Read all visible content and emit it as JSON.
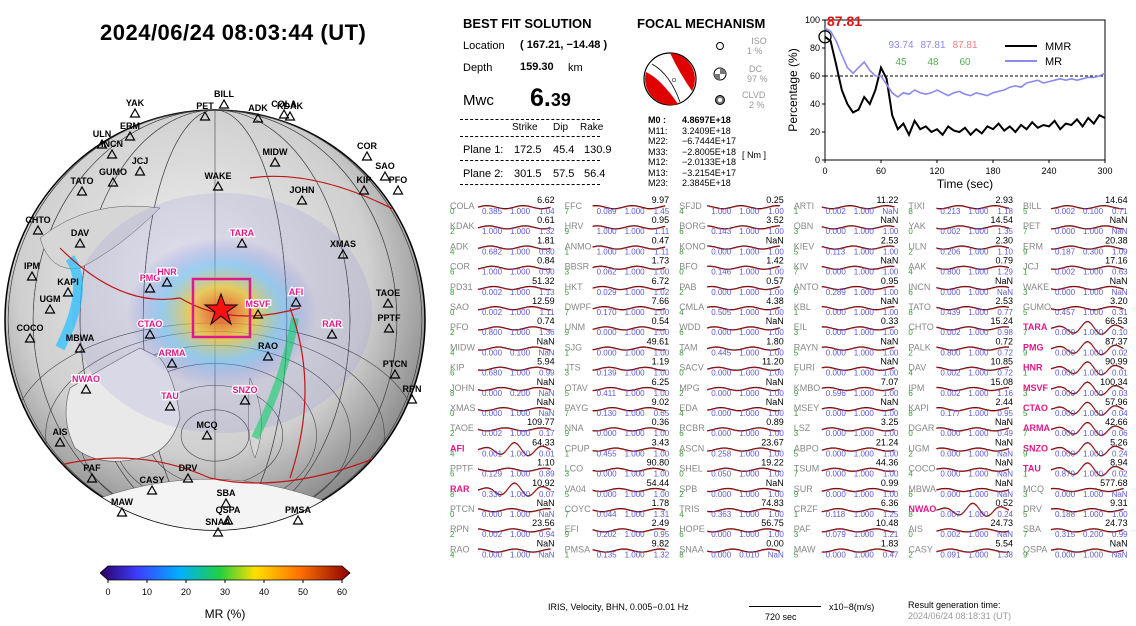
{
  "header": {
    "datetime": "2024/06/24  08:03:44 (UT)"
  },
  "solution": {
    "title": "BEST FIT SOLUTION",
    "location_label": "Location",
    "location_value": "( 167.21, −14.48 )",
    "depth_label": "Depth",
    "depth_value": "159.30",
    "depth_unit": "km",
    "mw_label": "Mwc",
    "mw_int": "6.",
    "mw_dec": "39",
    "col_strike": "Strike",
    "col_dip": "Dip",
    "col_rake": "Rake",
    "plane1_label": "Plane 1:",
    "plane1": [
      "172.5",
      "45.4",
      "130.9"
    ],
    "plane2_label": "Plane 2:",
    "plane2": [
      "301.5",
      "57.5",
      "56.4"
    ]
  },
  "focal": {
    "title": "FOCAL MECHANISM",
    "iso_label": "ISO",
    "iso_val": "1 %",
    "dc_label": "DC",
    "dc_val": "97 %",
    "clvd_label": "CLVD",
    "clvd_val": "2 %",
    "tensor": [
      [
        "M0 :",
        "4.8697E+18"
      ],
      [
        "M11:",
        "3.2409E+18"
      ],
      [
        "M22:",
        "−6.7444E+17"
      ],
      [
        "M33:",
        "−2.8005E+18"
      ],
      [
        "M12:",
        "−2.0133E+18"
      ],
      [
        "M13:",
        "−3.2154E+17"
      ],
      [
        "M23:",
        "2.3845E+18"
      ]
    ],
    "unit": "[ Nm ]",
    "colors": {
      "compression": "#e00000",
      "dilatation": "#ffffff"
    }
  },
  "inset": {
    "peak_label": "87.81",
    "nums_top": [
      "93.74",
      "87.81",
      "87.81"
    ],
    "nums_bottom": [
      "45",
      "48",
      "60"
    ],
    "legend": [
      "MMR",
      "MR"
    ],
    "ylabel": "Percentage (%)",
    "xlabel": "Time (sec)",
    "xticks": [
      "0",
      "60",
      "120",
      "180",
      "240",
      "300"
    ],
    "yticks": [
      "0",
      "20",
      "40",
      "60",
      "80",
      "100"
    ]
  },
  "chart_data": {
    "type": "line",
    "xlabel": "Time (sec)",
    "ylabel": "Percentage (%)",
    "xlim": [
      0,
      300
    ],
    "ylim": [
      0,
      100
    ],
    "reference_line": 60,
    "series": [
      {
        "name": "MMR",
        "color": "#000000",
        "x": [
          0,
          6,
          12,
          18,
          24,
          30,
          36,
          42,
          48,
          54,
          60,
          66,
          72,
          78,
          84,
          90,
          96,
          102,
          108,
          114,
          120,
          126,
          132,
          138,
          144,
          150,
          156,
          162,
          168,
          174,
          180,
          186,
          192,
          198,
          204,
          210,
          216,
          222,
          228,
          234,
          240,
          246,
          252,
          258,
          264,
          270,
          276,
          282,
          288,
          294,
          300
        ],
        "y": [
          88,
          85,
          68,
          50,
          40,
          34,
          36,
          45,
          40,
          50,
          66,
          58,
          32,
          22,
          26,
          18,
          28,
          22,
          24,
          20,
          22,
          18,
          24,
          21,
          20,
          23,
          18,
          22,
          19,
          24,
          22,
          26,
          21,
          24,
          20,
          25,
          22,
          27,
          23,
          25,
          24,
          28,
          22,
          26,
          25,
          29,
          24,
          30,
          26,
          32,
          30
        ]
      },
      {
        "name": "MR",
        "color": "#8a8aee",
        "x": [
          0,
          6,
          12,
          18,
          24,
          30,
          36,
          42,
          48,
          54,
          60,
          66,
          72,
          78,
          84,
          90,
          96,
          102,
          108,
          114,
          120,
          126,
          132,
          138,
          144,
          150,
          156,
          162,
          168,
          174,
          180,
          186,
          192,
          198,
          204,
          210,
          216,
          222,
          228,
          234,
          240,
          246,
          252,
          258,
          264,
          270,
          276,
          282,
          288,
          294,
          300
        ],
        "y": [
          94,
          92,
          85,
          75,
          66,
          62,
          66,
          70,
          64,
          60,
          60,
          54,
          48,
          45,
          48,
          47,
          50,
          48,
          47,
          48,
          50,
          48,
          46,
          48,
          49,
          47,
          46,
          48,
          47,
          46,
          48,
          49,
          50,
          52,
          53,
          52,
          55,
          56,
          57,
          55,
          56,
          57,
          58,
          57,
          58,
          57,
          58,
          59,
          59,
          60,
          62
        ]
      }
    ]
  },
  "colorbar": {
    "label": "MR (%)",
    "ticks": [
      "0",
      "10",
      "20",
      "30",
      "40",
      "50",
      "60"
    ]
  },
  "globe": {
    "stations": [
      {
        "name": "BILL",
        "red": false
      },
      {
        "name": "PET",
        "red": false
      },
      {
        "name": "ADK",
        "red": false
      },
      {
        "name": "COLA",
        "red": false
      },
      {
        "name": "KDAK",
        "red": false
      },
      {
        "name": "YAK",
        "red": false
      },
      {
        "name": "ERM",
        "red": false
      },
      {
        "name": "ULN",
        "red": false
      },
      {
        "name": "INCN",
        "red": false
      },
      {
        "name": "JCJ",
        "red": false
      },
      {
        "name": "MIDW",
        "red": false
      },
      {
        "name": "COR",
        "red": false
      },
      {
        "name": "SAO",
        "red": false
      },
      {
        "name": "PFO",
        "red": false
      },
      {
        "name": "TATO",
        "red": false
      },
      {
        "name": "GUMO",
        "red": false
      },
      {
        "name": "WAKE",
        "red": false
      },
      {
        "name": "JOHN",
        "red": false
      },
      {
        "name": "KIP",
        "red": false
      },
      {
        "name": "CHTO",
        "red": false
      },
      {
        "name": "DAV",
        "red": false
      },
      {
        "name": "TARA",
        "red": true
      },
      {
        "name": "XMAS",
        "red": false
      },
      {
        "name": "IPM",
        "red": false
      },
      {
        "name": "PMG",
        "red": true
      },
      {
        "name": "HNR",
        "red": true
      },
      {
        "name": "KAPI",
        "red": false
      },
      {
        "name": "AFI",
        "red": true
      },
      {
        "name": "TAOE",
        "red": false
      },
      {
        "name": "UGM",
        "red": false
      },
      {
        "name": "MSVF",
        "red": true
      },
      {
        "name": "PPTF",
        "red": false
      },
      {
        "name": "RAR",
        "red": true
      },
      {
        "name": "CTAO",
        "red": true
      },
      {
        "name": "COCO",
        "red": false
      },
      {
        "name": "MBWA",
        "red": false
      },
      {
        "name": "RAO",
        "red": false
      },
      {
        "name": "ARMA",
        "red": true
      },
      {
        "name": "PTCN",
        "red": false
      },
      {
        "name": "NWAO",
        "red": true
      },
      {
        "name": "RPN",
        "red": false
      },
      {
        "name": "TAU",
        "red": true
      },
      {
        "name": "SNZO",
        "red": true
      },
      {
        "name": "MCQ",
        "red": false
      },
      {
        "name": "AIS",
        "red": false
      },
      {
        "name": "PAF",
        "red": false
      },
      {
        "name": "DRV",
        "red": false
      },
      {
        "name": "CASY",
        "red": false
      },
      {
        "name": "SBA",
        "red": false
      },
      {
        "name": "MAW",
        "red": false
      },
      {
        "name": "QSPA",
        "red": false
      },
      {
        "name": "PMSA",
        "red": false
      },
      {
        "name": "SNAA",
        "red": false
      }
    ]
  },
  "traces": [
    [
      "COLA",
      "6.62",
      "0.385",
      "1.000",
      "1.04",
      false
    ],
    [
      "FFC",
      "9.97",
      "0.089",
      "1.000",
      "1.45",
      false
    ],
    [
      "SFJD",
      "0.25",
      "1.000",
      "1.000",
      "1.00",
      false
    ],
    [
      "ARTI",
      "11.22",
      "0.002",
      "1.000",
      "NaN",
      false
    ],
    [
      "TIXI",
      "2.93",
      "0.213",
      "1.000",
      "1.18",
      false
    ],
    [
      "BILL",
      "14.64",
      "0.002",
      "0.100",
      "0.71",
      false
    ],
    [
      "KDAK",
      "0.61",
      "1.000",
      "1.000",
      "1.32",
      false
    ],
    [
      "HRV",
      "0.95",
      "1.000",
      "1.000",
      "1.11",
      false
    ],
    [
      "BORG",
      "3.52",
      "0.143",
      "1.000",
      "1.00",
      false
    ],
    [
      "OBN",
      "NaN",
      "0.000",
      "1.000",
      "1.00",
      false
    ],
    [
      "YAK",
      "14.54",
      "0.002",
      "1.000",
      "1.35",
      false
    ],
    [
      "PET",
      "NaN",
      "0.000",
      "1.000",
      "NaN",
      false
    ],
    [
      "ADK",
      "1.81",
      "0.682",
      "1.000",
      "0.80",
      false
    ],
    [
      "ANMO",
      "0.47",
      "1.000",
      "1.000",
      "1.11",
      false
    ],
    [
      "KONO",
      "NaN",
      "0.000",
      "1.000",
      "1.00",
      false
    ],
    [
      "KIEV",
      "2.53",
      "0.113",
      "1.000",
      "1.00",
      false
    ],
    [
      "ULN",
      "2.30",
      "0.206",
      "1.000",
      "1.10",
      false
    ],
    [
      "ERM",
      "20.38",
      "0.187",
      "0.300",
      "1.09",
      false
    ],
    [
      "COR",
      "0.84",
      "1.000",
      "1.000",
      "0.90",
      false
    ],
    [
      "BBSR",
      "1.73",
      "0.062",
      "1.000",
      "1.00",
      false
    ],
    [
      "BFO",
      "1.42",
      "0.146",
      "1.000",
      "1.00",
      false
    ],
    [
      "KIV",
      "NaN",
      "0.000",
      "1.000",
      "1.00",
      false
    ],
    [
      "AAK",
      "0.79",
      "0.800",
      "1.000",
      "1.29",
      false
    ],
    [
      "JCJ",
      "17.16",
      "0.002",
      "1.000",
      "0.63",
      false
    ],
    [
      "PD31",
      "51.32",
      "0.002",
      "1.000",
      "1.13",
      false
    ],
    [
      "HKT",
      "6.72",
      "0.029",
      "1.000",
      "1.02",
      false
    ],
    [
      "PAB",
      "0.57",
      "0.000",
      "1.000",
      "1.00",
      false
    ],
    [
      "ANTO",
      "0.95",
      "0.289",
      "1.000",
      "1.00",
      false
    ],
    [
      "INCN",
      "NaN",
      "0.000",
      "1.000",
      "NaN",
      false
    ],
    [
      "WAKE",
      "NaN",
      "0.000",
      "1.000",
      "NaN",
      false
    ],
    [
      "SAO",
      "12.59",
      "0.002",
      "1.000",
      "1.11",
      false
    ],
    [
      "DWPF",
      "7.66",
      "0.170",
      "1.000",
      "1.00",
      false
    ],
    [
      "CMLA",
      "4.38",
      "0.505",
      "1.000",
      "1.00",
      false
    ],
    [
      "KBL",
      "NaN",
      "0.000",
      "1.000",
      "1.00",
      false
    ],
    [
      "TATO",
      "2.53",
      "0.439",
      "1.000",
      "0.77",
      false
    ],
    [
      "GUMO",
      "3.20",
      "0.457",
      "1.000",
      "0.31",
      false
    ],
    [
      "PFO",
      "0.74",
      "0.800",
      "1.000",
      "1.36",
      false
    ],
    [
      "UNM",
      "0.54",
      "0.000",
      "1.000",
      "1.00",
      false
    ],
    [
      "WDD",
      "NaN",
      "0.000",
      "1.000",
      "1.00",
      false
    ],
    [
      "EIL",
      "0.33",
      "0.000",
      "1.000",
      "1.00",
      false
    ],
    [
      "CHTO",
      "15.24",
      "0.002",
      "1.000",
      "0.98",
      false
    ],
    [
      "TARA",
      "66.53",
      "0.000",
      "1.000",
      "0.10",
      true
    ],
    [
      "MIDW",
      "NaN",
      "0.000",
      "0.100",
      "NaN",
      false
    ],
    [
      "SJG",
      "49.61",
      "0.000",
      "1.000",
      "1.00",
      false
    ],
    [
      "TAM",
      "1.80",
      "0.445",
      "1.000",
      "1.00",
      false
    ],
    [
      "RAYN",
      "NaN",
      "0.000",
      "1.000",
      "1.00",
      false
    ],
    [
      "PALK",
      "0.72",
      "0.800",
      "1.000",
      "0.72",
      false
    ],
    [
      "PMG",
      "87.37",
      "0.000",
      "1.000",
      "0.02",
      true
    ],
    [
      "KIP",
      "5.94",
      "0.680",
      "1.000",
      "0.99",
      false
    ],
    [
      "JTS",
      "1.19",
      "0.139",
      "1.000",
      "1.00",
      false
    ],
    [
      "SACV",
      "11.20",
      "0.000",
      "1.000",
      "1.00",
      false
    ],
    [
      "FURI",
      "NaN",
      "0.000",
      "1.000",
      "1.00",
      false
    ],
    [
      "DAV",
      "10.85",
      "0.002",
      "1.000",
      "0.72",
      false
    ],
    [
      "HNR",
      "90.99",
      "0.000",
      "1.000",
      "0.01",
      true
    ],
    [
      "JOHN",
      "NaN",
      "0.000",
      "0.200",
      "NaN",
      false
    ],
    [
      "OTAV",
      "6.25",
      "0.411",
      "1.000",
      "1.00",
      false
    ],
    [
      "MPG",
      "NaN",
      "0.000",
      "1.000",
      "1.00",
      false
    ],
    [
      "KMBO",
      "7.07",
      "0.596",
      "1.000",
      "1.00",
      false
    ],
    [
      "IPM",
      "15.08",
      "0.002",
      "1.000",
      "1.16",
      false
    ],
    [
      "MSVF",
      "100.34",
      "0.000",
      "1.000",
      "0.03",
      true
    ],
    [
      "XMAS",
      "NaN",
      "0.000",
      "1.000",
      "NaN",
      false
    ],
    [
      "PAYG",
      "9.02",
      "0.130",
      "1.000",
      "0.65",
      false
    ],
    [
      "EDA",
      "NaN",
      "0.000",
      "1.000",
      "1.00",
      false
    ],
    [
      "MSEY",
      "NaN",
      "0.000",
      "1.000",
      "1.00",
      false
    ],
    [
      "KAPI",
      "2.44",
      "0.177",
      "1.000",
      "0.95",
      false
    ],
    [
      "CTAO",
      "57.96",
      "0.000",
      "1.000",
      "0.04",
      true
    ],
    [
      "TAOE",
      "109.77",
      "0.002",
      "1.000",
      "0.17",
      false
    ],
    [
      "NNA",
      "0.36",
      "0.000",
      "1.000",
      "1.00",
      false
    ],
    [
      "RCBR",
      "0.89",
      "0.000",
      "1.000",
      "1.00",
      false
    ],
    [
      "LSZ",
      "3.25",
      "0.000",
      "1.000",
      "1.00",
      false
    ],
    [
      "DGAR",
      "NaN",
      "0.000",
      "1.000",
      "0.49",
      false
    ],
    [
      "ARMA",
      "42.66",
      "0.000",
      "1.000",
      "0.06",
      true
    ],
    [
      "AFI",
      "64.33",
      "0.001",
      "1.000",
      "0.01",
      true
    ],
    [
      "CPUP",
      "3.43",
      "0.455",
      "1.000",
      "1.00",
      false
    ],
    [
      "ASCN",
      "23.67",
      "0.258",
      "1.000",
      "1.00",
      false
    ],
    [
      "ABPO",
      "21.24",
      "0.000",
      "1.000",
      "1.00",
      false
    ],
    [
      "UGM",
      "NaN",
      "0.000",
      "1.000",
      "NaN",
      false
    ],
    [
      "SNZO",
      "5.26",
      "0.000",
      "1.000",
      "0.24",
      true
    ],
    [
      "PPTF",
      "1.10",
      "0.129",
      "1.000",
      "0.89",
      false
    ],
    [
      "LCO",
      "90.80",
      "0.000",
      "1.000",
      "1.00",
      false
    ],
    [
      "SHEL",
      "19.22",
      "0.050",
      "1.000",
      "1.00",
      false
    ],
    [
      "TSUM",
      "44.36",
      "0.000",
      "1.000",
      "1.00",
      false
    ],
    [
      "COCO",
      "NaN",
      "0.000",
      "1.000",
      "NaN",
      false
    ],
    [
      "TAU",
      "8.94",
      "0.879",
      "1.000",
      "0.02",
      true
    ],
    [
      "RAR",
      "10.92",
      "0.330",
      "1.000",
      "0.07",
      true
    ],
    [
      "VA04",
      "54.44",
      "0.000",
      "1.000",
      "1.00",
      false
    ],
    [
      "SPB",
      "NaN",
      "0.000",
      "1.000",
      "1.00",
      false
    ],
    [
      "SUR",
      "0.99",
      "0.000",
      "1.000",
      "1.00",
      false
    ],
    [
      "MBWA",
      "NaN",
      "0.000",
      "1.000",
      "NaN",
      false
    ],
    [
      "MCQ",
      "577.68",
      "0.000",
      "1.000",
      "NaN",
      false
    ],
    [
      "PTCN",
      "NaN",
      "0.000",
      "1.000",
      "NaN",
      false
    ],
    [
      "COYC",
      "1.78",
      "0.044",
      "1.000",
      "1.31",
      false
    ],
    [
      "TRIS",
      "74.83",
      "0.363",
      "1.000",
      "1.00",
      false
    ],
    [
      "CRZF",
      "6.36",
      "0.118",
      "1.000",
      "1.25",
      false
    ],
    [
      "NWAO",
      "0.52",
      "0.007",
      "1.000",
      "0.24",
      true
    ],
    [
      "DRV",
      "9.31",
      "0.188",
      "1.000",
      "1.00",
      false
    ],
    [
      "RPN",
      "23.56",
      "0.002",
      "1.000",
      "0.94",
      false
    ],
    [
      "EFI",
      "2.49",
      "0.202",
      "1.000",
      "0.95",
      false
    ],
    [
      "HOPE",
      "56.75",
      "0.000",
      "1.000",
      "1.00",
      false
    ],
    [
      "PAF",
      "10.48",
      "0.079",
      "1.000",
      "1.21",
      false
    ],
    [
      "AIS",
      "24.73",
      "0.002",
      "1.000",
      "NaN",
      false
    ],
    [
      "SBA",
      "24.73",
      "0.315",
      "0.200",
      "0.99",
      false
    ],
    [
      "RAO",
      "NaN",
      "0.000",
      "1.000",
      "NaN",
      false
    ],
    [
      "PMSA",
      "9.82",
      "0.135",
      "1.000",
      "1.32",
      false
    ],
    [
      "SNAA",
      "0.00",
      "0.000",
      "0.010",
      "NaN",
      false
    ],
    [
      "MAW",
      "1.83",
      "0.000",
      "1.000",
      "0.47",
      false
    ],
    [
      "CASY",
      "5.54",
      "0.091",
      "1.000",
      "1.38",
      false
    ],
    [
      "QSPA",
      "NaN",
      "0.000",
      "1.000",
      "NaN",
      false
    ]
  ],
  "footer": {
    "info": "IRIS, Velocity,  BHN,  0.005−0.01 Hz",
    "scale": "720 sec",
    "amp": "x10−8(m/s)",
    "gen_label": "Result generation time:",
    "gen_time": "2024/06/24  08:18:31 (UT)"
  }
}
